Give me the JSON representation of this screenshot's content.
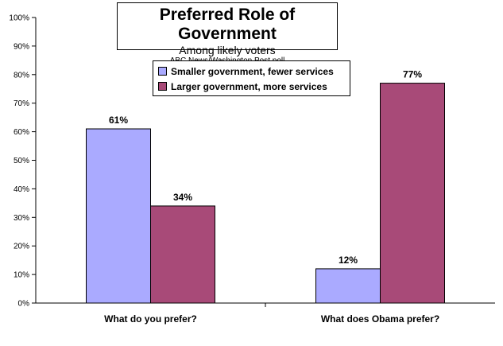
{
  "chart_data": {
    "type": "bar",
    "title": "Preferred Role of Government",
    "subtitle": "Among likely voters",
    "source": "ABC News/Washington Post poll",
    "categories": [
      "What do you prefer?",
      "What does Obama prefer?"
    ],
    "series": [
      {
        "name": "Smaller government, fewer services",
        "values": [
          61,
          12
        ],
        "color": "#aaaaff"
      },
      {
        "name": "Larger government, more services",
        "values": [
          34,
          77
        ],
        "color": "#a84a78"
      }
    ],
    "value_labels": [
      [
        "61%",
        "12%"
      ],
      [
        "34%",
        "77%"
      ]
    ],
    "ylim": [
      0,
      100
    ],
    "yticks": [
      "0%",
      "10%",
      "20%",
      "30%",
      "40%",
      "50%",
      "60%",
      "70%",
      "80%",
      "90%",
      "100%"
    ],
    "grid": false,
    "legend_position": "top-center"
  }
}
